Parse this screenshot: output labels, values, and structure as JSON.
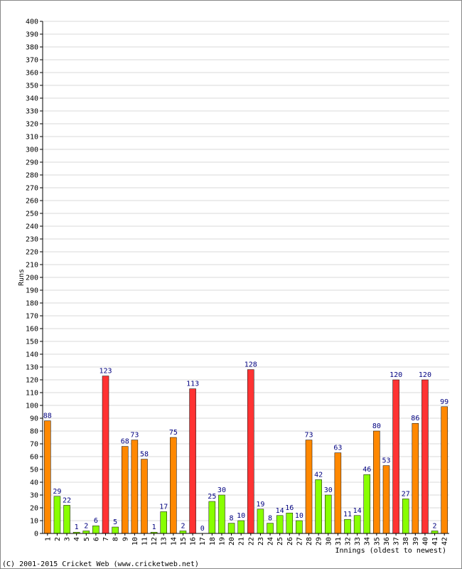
{
  "chart_data": {
    "type": "bar",
    "xlabel": "Innings (oldest to newest)",
    "ylabel": "Runs",
    "ylim": [
      0,
      400
    ],
    "y_tick_step": 10,
    "grid": true,
    "legend": "none",
    "categories": [
      "1",
      "2",
      "3",
      "4",
      "5",
      "6",
      "7",
      "8",
      "9",
      "10",
      "11",
      "12",
      "13",
      "14",
      "15",
      "16",
      "17",
      "18",
      "19",
      "20",
      "21",
      "22",
      "23",
      "24",
      "25",
      "26",
      "27",
      "28",
      "29",
      "30",
      "31",
      "32",
      "33",
      "34",
      "35",
      "36",
      "37",
      "38",
      "39",
      "40",
      "41",
      "42"
    ],
    "values": [
      88,
      29,
      22,
      1,
      2,
      6,
      123,
      5,
      68,
      73,
      58,
      1,
      17,
      75,
      2,
      113,
      0,
      25,
      30,
      8,
      10,
      128,
      19,
      8,
      14,
      16,
      10,
      73,
      42,
      30,
      63,
      11,
      14,
      46,
      80,
      53,
      120,
      27,
      86,
      120,
      2,
      99
    ],
    "bar_colors": [
      "#ff8800",
      "#88ff00",
      "#88ff00",
      "#88ff00",
      "#88ff00",
      "#88ff00",
      "#ff3333",
      "#88ff00",
      "#ff8800",
      "#ff8800",
      "#ff8800",
      "#88ff00",
      "#88ff00",
      "#ff8800",
      "#88ff00",
      "#ff3333",
      "#88ff00",
      "#88ff00",
      "#88ff00",
      "#88ff00",
      "#88ff00",
      "#ff3333",
      "#88ff00",
      "#88ff00",
      "#88ff00",
      "#88ff00",
      "#88ff00",
      "#ff8800",
      "#88ff00",
      "#88ff00",
      "#ff8800",
      "#88ff00",
      "#88ff00",
      "#88ff00",
      "#ff8800",
      "#ff8800",
      "#ff3333",
      "#88ff00",
      "#ff8800",
      "#ff3333",
      "#88ff00",
      "#ff8800"
    ],
    "colors": {
      "grid": "#d8d8d8",
      "axis": "#000000",
      "value_label": "#000080",
      "bar_outline": "#000000"
    }
  },
  "footer": {
    "copyright": "(C) 2001-2015 Cricket Web (www.cricketweb.net)"
  }
}
